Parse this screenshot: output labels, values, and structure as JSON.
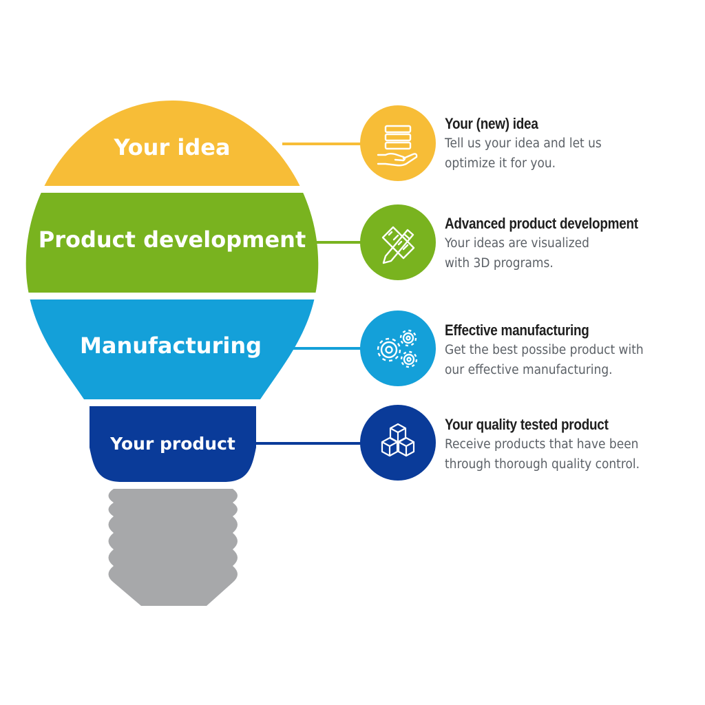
{
  "colors": {
    "yellow": "#f7bd37",
    "green": "#79b31f",
    "blue": "#14a0d9",
    "navy": "#0a3b99",
    "base": "#a7a8aa"
  },
  "bulb": {
    "bands": [
      {
        "label": "Your idea",
        "color": "#f7bd37"
      },
      {
        "label": "Product development",
        "color": "#79b31f"
      },
      {
        "label": "Manufacturing",
        "color": "#14a0d9"
      },
      {
        "label": "Your product",
        "color": "#0a3b99"
      }
    ]
  },
  "steps": [
    {
      "icon": "hand-holding-layers-icon",
      "title": "Your (new) idea",
      "desc_lines": [
        "Tell us your idea and let us",
        "optimize it for you."
      ]
    },
    {
      "icon": "pencil-ruler-icon",
      "title": "Advanced product development",
      "desc_lines": [
        "Your ideas are visualized",
        "with 3D programs."
      ]
    },
    {
      "icon": "gears-icon",
      "title": "Effective manufacturing",
      "desc_lines": [
        "Get the best possibe product with",
        "our effective manufacturing."
      ]
    },
    {
      "icon": "stacked-boxes-icon",
      "title": "Your quality tested product",
      "desc_lines": [
        "Receive products that have been",
        "through thorough quality control."
      ]
    }
  ]
}
